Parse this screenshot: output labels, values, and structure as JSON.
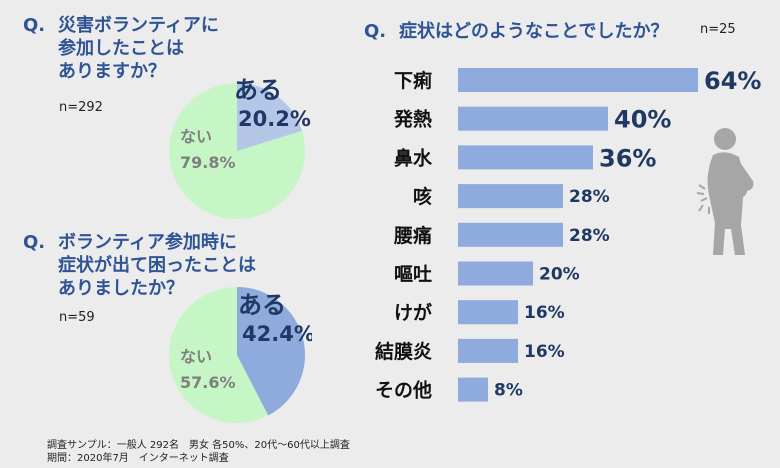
{
  "q1": {
    "mark": "Q.",
    "text": "災害ボランティアに\n参加したことは\nありますか？",
    "n": "n=292"
  },
  "q2": {
    "mark": "Q.",
    "text": "ボランティア参加時に\n症状が出て困ったことは\nありましたか？",
    "n": "n=59"
  },
  "q3": {
    "mark": "Q.",
    "text": "症状はどのようなことでしたか？",
    "n": "n=25"
  },
  "footer": {
    "line1": "調査サンプル：一般人 292名　男女 各50%、20代〜60代以上調査",
    "line2": "期間：2020年7月　インターネット調査"
  },
  "colors": {
    "accent": "#2f5496",
    "bar": "#8faadc",
    "pie_yes": "#8faadc",
    "pie_no": "#c6f5c6",
    "pie_yes_light": "#b4c7e7",
    "figure": "#a6a6a6"
  },
  "chart_data": [
    {
      "type": "pie",
      "slices": [
        {
          "label": "ある",
          "value": 20.2,
          "display": "20.2%"
        },
        {
          "label": "ない",
          "value": 79.8,
          "display": "79.8%"
        }
      ]
    },
    {
      "type": "pie",
      "slices": [
        {
          "label": "ある",
          "value": 42.4,
          "display": "42.4%"
        },
        {
          "label": "ない",
          "value": 57.6,
          "display": "57.6%"
        }
      ]
    },
    {
      "type": "bar",
      "orientation": "horizontal",
      "categories": [
        "下痢",
        "発熱",
        "鼻水",
        "咳",
        "腰痛",
        "嘔吐",
        "けが",
        "結膜炎",
        "その他"
      ],
      "values": [
        64,
        40,
        36,
        28,
        28,
        20,
        16,
        16,
        8
      ],
      "value_labels": [
        "64%",
        "40%",
        "36%",
        "28%",
        "28%",
        "20%",
        "16%",
        "16%",
        "8%"
      ]
    }
  ]
}
